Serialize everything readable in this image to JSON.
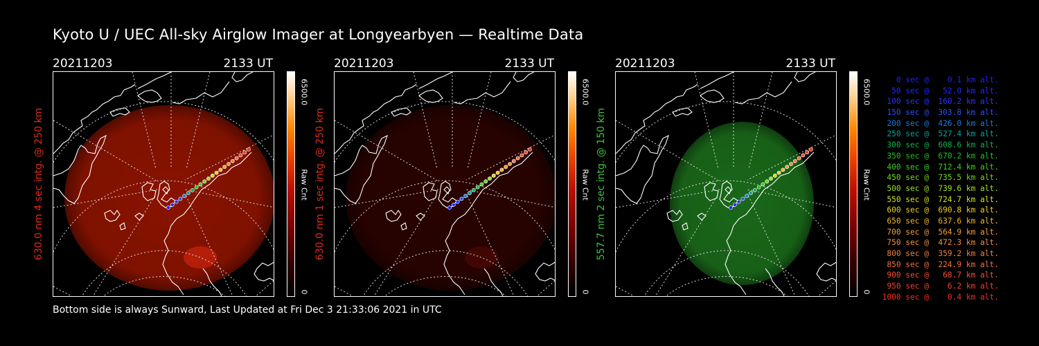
{
  "title": "Kyoto U / UEC All-sky Airglow Imager at Longyearbyen — Realtime Data",
  "footer": "Bottom side is always Sunward, Last Updated at Fri Dec  3 21:33:06 2021 in UTC",
  "colorbar": {
    "max": "6500.0",
    "min": "0",
    "unit": "Raw Cnt"
  },
  "panels": [
    {
      "date": "20211203",
      "time": "2133 UT",
      "label": "630.0 nm 4 sec intg. @ 250 km",
      "label_color": "#e02a1a",
      "glow": "#b01800",
      "glow_opacity": 0.78
    },
    {
      "date": "20211203",
      "time": "2133 UT",
      "label": "630.0 nm 1 sec intg. @ 250 km",
      "label_color": "#e02a1a",
      "glow": "#4a0500",
      "glow_opacity": 0.55
    },
    {
      "date": "20211203",
      "time": "2133 UT",
      "label": "557.7 nm 2 sec intg. @ 150 km",
      "label_color": "#3fc13f",
      "glow": "#1e7a1e",
      "glow_opacity": 0.85
    }
  ],
  "legend": [
    {
      "text": "   0 sec @    0.1 km alt.",
      "color": "#2020ff"
    },
    {
      "text": "  50 sec @   52.0 km alt.",
      "color": "#2828ff"
    },
    {
      "text": " 100 sec @  160.2 km alt.",
      "color": "#3030ff"
    },
    {
      "text": " 150 sec @  303.8 km alt.",
      "color": "#2a50f0"
    },
    {
      "text": " 200 sec @  426.0 km alt.",
      "color": "#1a7ae0"
    },
    {
      "text": " 250 sec @  527.4 km alt.",
      "color": "#10a0a0"
    },
    {
      "text": " 300 sec @  608.6 km alt.",
      "color": "#10b050"
    },
    {
      "text": " 350 sec @  670.2 km alt.",
      "color": "#20c020"
    },
    {
      "text": " 400 sec @  712.4 km alt.",
      "color": "#40d020"
    },
    {
      "text": " 450 sec @  735.5 km alt.",
      "color": "#70d820"
    },
    {
      "text": " 500 sec @  739.6 km alt.",
      "color": "#a0e020"
    },
    {
      "text": " 550 sec @  724.7 km alt.",
      "color": "#d0e020"
    },
    {
      "text": " 600 sec @  690.8 km alt.",
      "color": "#f0d020"
    },
    {
      "text": " 650 sec @  637.6 km alt.",
      "color": "#f0b830"
    },
    {
      "text": " 700 sec @  564.9 km alt.",
      "color": "#f0a030"
    },
    {
      "text": " 750 sec @  472.3 km alt.",
      "color": "#f09040"
    },
    {
      "text": " 800 sec @  359.2 km alt.",
      "color": "#f08040"
    },
    {
      "text": " 850 sec @  224.9 km alt.",
      "color": "#f07040"
    },
    {
      "text": " 900 sec @   68.7 km alt.",
      "color": "#f05030"
    },
    {
      "text": " 950 sec @    6.2 km alt.",
      "color": "#f04030"
    },
    {
      "text": "1000 sec @    0.4 km alt.",
      "color": "#f03020"
    }
  ]
}
